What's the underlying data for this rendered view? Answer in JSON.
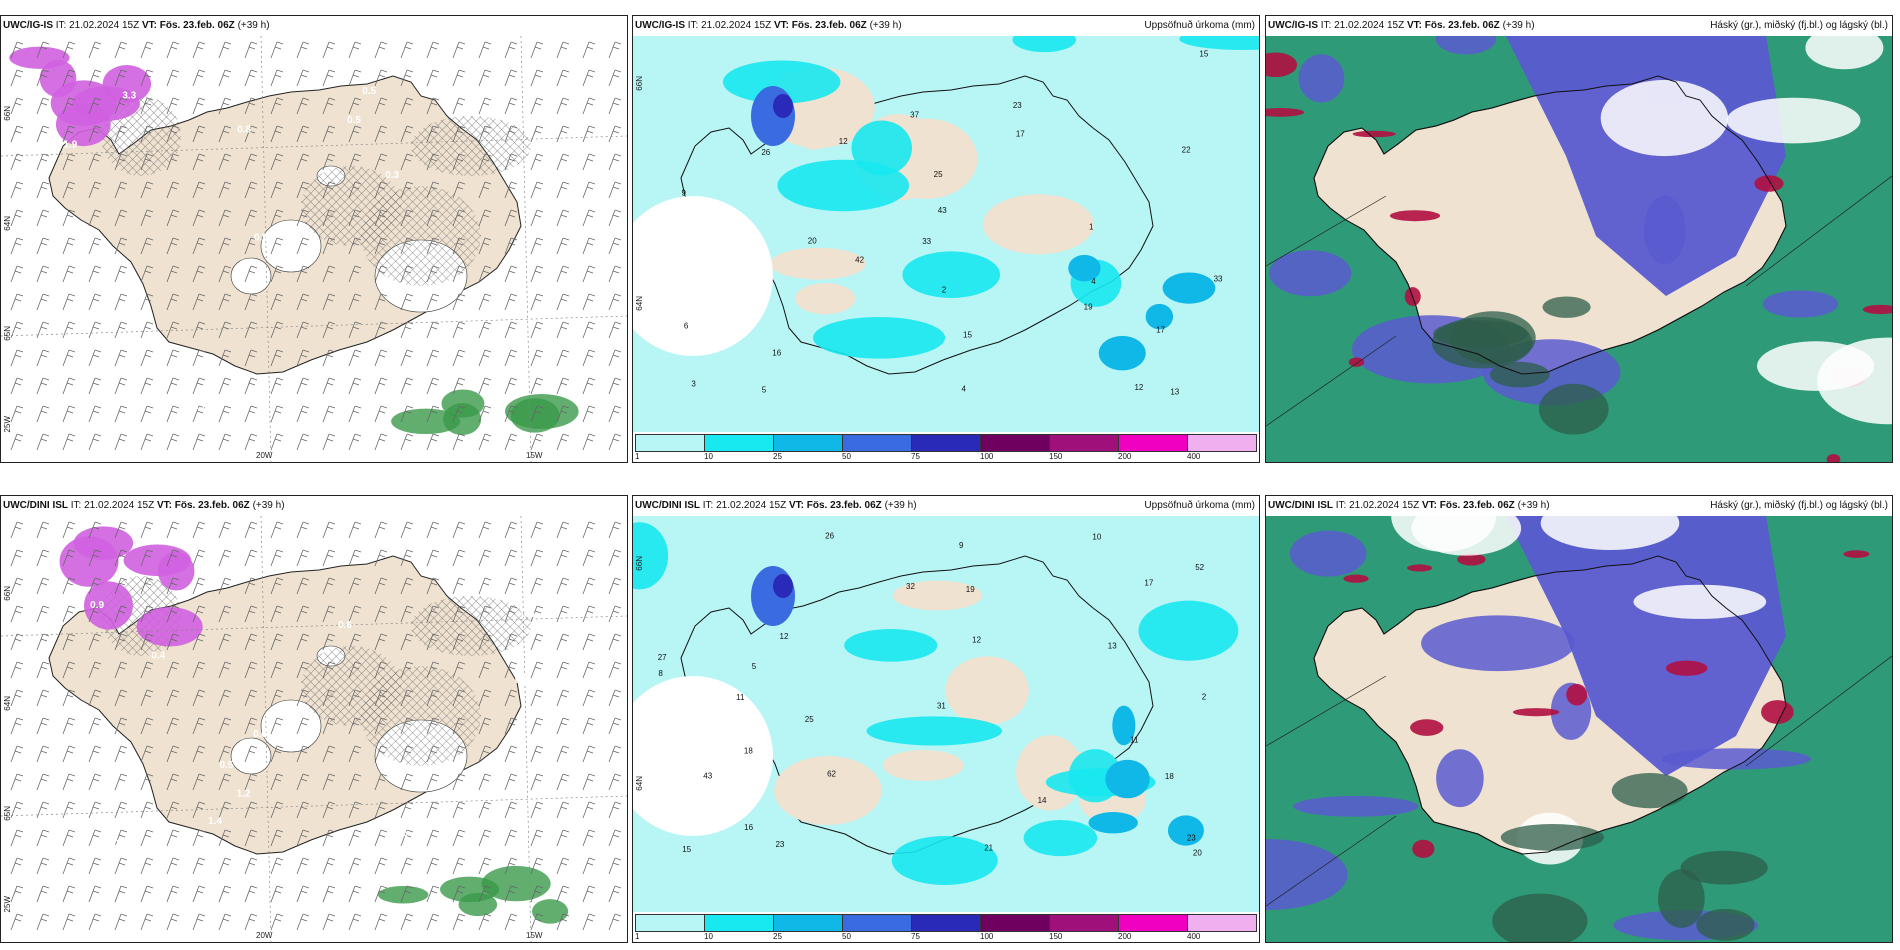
{
  "rows": [
    {
      "panels": [
        {
          "kind": "wind",
          "model": "UWC/IG-IS",
          "it": "IT: 21.02.2024 15Z",
          "vt": "VT: Fös. 23.feb. 06Z",
          "lead": "(+39 h)",
          "right_title": "",
          "lat_labels": [
            "66N",
            "64N",
            "65N"
          ],
          "lon_labels": [
            "20W",
            "15W"
          ],
          "lon_left": "25W",
          "values": [
            "0.5",
            "0.5",
            "0.5",
            "0.8",
            "0.3",
            "1.9",
            "3.3",
            "0.5",
            "0.3"
          ]
        },
        {
          "kind": "precip",
          "model": "UWC/IG-IS",
          "it": "IT: 21.02.2024 15Z",
          "vt": "VT: Fös. 23.feb. 06Z",
          "lead": "(+39 h)",
          "right_title": "Uppsöfnuð úrkoma (mm)",
          "lat_labels": [
            "66N",
            "64N"
          ],
          "colorbar_ticks": [
            "1",
            "10",
            "25",
            "50",
            "75",
            "100",
            "150",
            "200",
            "400"
          ],
          "values": [
            "25",
            "13",
            "4",
            "4",
            "1",
            "33",
            "42",
            "43",
            "12",
            "20",
            "37",
            "26",
            "23",
            "15",
            "17",
            "19",
            "12",
            "16",
            "33",
            "22",
            "15",
            "17",
            "9",
            "5",
            "6",
            "3",
            "2"
          ]
        },
        {
          "kind": "cloud",
          "model": "UWC/IG-IS",
          "it": "IT: 21.02.2024 15Z",
          "vt": "VT: Fös. 23.feb. 06Z",
          "lead": "(+39 h)",
          "right_title": "Háský (gr.), miðský (fj.bl.) og lágský (bl.)"
        }
      ]
    },
    {
      "panels": [
        {
          "kind": "wind",
          "model": "UWC/DINI ISL",
          "it": "IT: 21.02.2024 15Z",
          "vt": "VT: Fös. 23.feb. 06Z",
          "lead": "(+39 h)",
          "right_title": "",
          "lat_labels": [
            "66N",
            "64N",
            "65N"
          ],
          "lon_labels": [
            "20W",
            "15W"
          ],
          "lon_left": "25W",
          "values": [
            "2.9",
            "0.6",
            "0.7",
            "0.5",
            "1.4",
            "0.2",
            "0.5",
            "0.6",
            "0.8",
            "0.7",
            "0.8",
            "1.2",
            "0.5",
            "1.2",
            "0.9",
            "0.4"
          ]
        },
        {
          "kind": "precip",
          "model": "UWC/DINI ISL",
          "it": "IT: 21.02.2024 15Z",
          "vt": "VT: Fös. 23.feb. 06Z",
          "lead": "(+39 h)",
          "right_title": "Uppsöfnuð úrkoma (mm)",
          "lat_labels": [
            "66N",
            "64N"
          ],
          "colorbar_ticks": [
            "1",
            "10",
            "25",
            "50",
            "75",
            "100",
            "150",
            "200",
            "400"
          ],
          "values": [
            "18",
            "17",
            "12",
            "11",
            "13",
            "62",
            "43",
            "31",
            "25",
            "27",
            "26",
            "32",
            "23",
            "19",
            "16",
            "18",
            "12",
            "10",
            "15",
            "14",
            "21",
            "52",
            "23",
            "20",
            "11",
            "9",
            "5",
            "8",
            "2"
          ]
        },
        {
          "kind": "cloud",
          "model": "UWC/DINI ISL",
          "it": "IT: 21.02.2024 15Z",
          "vt": "VT: Fös. 23.feb. 06Z",
          "lead": "(+39 h)",
          "right_title": "Háský (gr.), miðský (fj.bl.) og lágský (bl.)"
        }
      ]
    }
  ],
  "colors": {
    "land": "#efe2d0",
    "precip_scale": [
      "#b8f5f5",
      "#18e8f0",
      "#10b8e8",
      "#3a6be0",
      "#2a2ab8",
      "#700060",
      "#a0107a",
      "#f000c0",
      "#f0b0f0"
    ],
    "high_cloud": "#2f9a78",
    "mid_cloud": "#5a5ad0",
    "low_cloud": "#b01040",
    "snow": "#d060e0",
    "rain": "#3a9a4a"
  }
}
